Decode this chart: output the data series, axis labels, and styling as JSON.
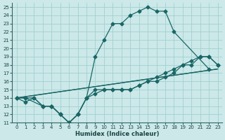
{
  "xlabel": "Humidex (Indice chaleur)",
  "xlim": [
    -0.5,
    23.5
  ],
  "ylim": [
    11,
    25.5
  ],
  "xticks": [
    0,
    1,
    2,
    3,
    4,
    5,
    6,
    7,
    8,
    9,
    10,
    11,
    12,
    13,
    14,
    15,
    16,
    17,
    18,
    19,
    20,
    21,
    22,
    23
  ],
  "yticks": [
    11,
    12,
    13,
    14,
    15,
    16,
    17,
    18,
    19,
    20,
    21,
    22,
    23,
    24,
    25
  ],
  "bg_color": "#cce8e8",
  "grid_color": "#99cccc",
  "line_color": "#1a6666",
  "line1_x": [
    0,
    1,
    2,
    3,
    4,
    5,
    6,
    7,
    8,
    9,
    10,
    11,
    12,
    13,
    14,
    15,
    16,
    17,
    18,
    22
  ],
  "line1_y": [
    14,
    14,
    14,
    13,
    13,
    12,
    11,
    12,
    14,
    19,
    21,
    23,
    23,
    24,
    24.5,
    25,
    24.5,
    24.5,
    22,
    17.5
  ],
  "line2_x": [
    0,
    23
  ],
  "line2_y": [
    14,
    17.5
  ],
  "line3_x": [
    0,
    23
  ],
  "line3_y": [
    14,
    17.5
  ],
  "line4_x": [
    0,
    1,
    3,
    4,
    5,
    6,
    7,
    8,
    9,
    10,
    11,
    12,
    13,
    14,
    15,
    16,
    17,
    18,
    19,
    20,
    21,
    22,
    23
  ],
  "line4_y": [
    14,
    14,
    13,
    13,
    12,
    11,
    12,
    14,
    15,
    15,
    15,
    15,
    15,
    15.5,
    16,
    16.5,
    17,
    17.5,
    18,
    18.5,
    19,
    19,
    18
  ],
  "line5_x": [
    0,
    1,
    2,
    3,
    4,
    5,
    6,
    7,
    8,
    9,
    10,
    11,
    12,
    13,
    14,
    15,
    16,
    17,
    18,
    19,
    20,
    21,
    22,
    23
  ],
  "line5_y": [
    14,
    13.5,
    14,
    13,
    13,
    12,
    11,
    12,
    14,
    14.5,
    15,
    15,
    15,
    15,
    15.5,
    16,
    16,
    16.5,
    17,
    18,
    18,
    19,
    19,
    18
  ]
}
